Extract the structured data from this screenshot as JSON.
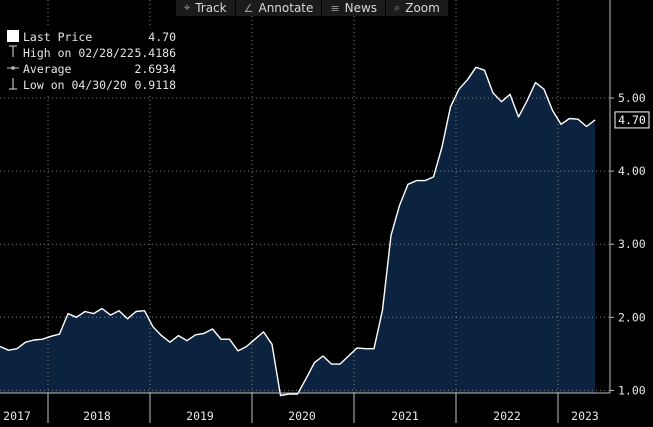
{
  "toolbar": {
    "items": [
      {
        "label": "Track",
        "icon": "crosshair-icon",
        "glyph": "⌖"
      },
      {
        "label": "Annotate",
        "icon": "pencil-icon",
        "glyph": "∠"
      },
      {
        "label": "News",
        "icon": "news-icon",
        "glyph": "≡"
      },
      {
        "label": "Zoom",
        "icon": "magnifier-icon",
        "glyph": "⌕"
      }
    ]
  },
  "legend": {
    "last_price": {
      "label": "Last Price",
      "value": "4.70"
    },
    "high": {
      "label": "High on 02/28/22",
      "value": "5.4186"
    },
    "average": {
      "label": "Average",
      "value": "2.6934"
    },
    "low": {
      "label": "Low on 04/30/20",
      "value": "0.9118"
    }
  },
  "colors": {
    "background": "#000000",
    "area_fill": "#0c2340",
    "line": "#ffffff",
    "grid": "#9a9a9a",
    "axis_text": "#e6e6e6"
  },
  "chart_data": {
    "type": "area",
    "x_start": "2017-01",
    "x_end": "2023-03",
    "x_labels": [
      "2017",
      "2018",
      "2019",
      "2020",
      "2021",
      "2022",
      "2023"
    ],
    "ylim": [
      0.5,
      5.5
    ],
    "y_ticks": [
      "1.00",
      "2.00",
      "3.00",
      "4.00",
      "5.00"
    ],
    "last_value_label": "4.70",
    "grid": true,
    "series": [
      {
        "values": [
          1.6,
          1.55,
          1.57,
          1.66,
          1.69,
          1.7,
          1.74,
          1.77,
          2.05,
          2.0,
          2.08,
          2.05,
          2.12,
          2.03,
          2.09,
          1.98,
          2.08,
          2.09,
          1.87,
          1.75,
          1.66,
          1.75,
          1.68,
          1.76,
          1.78,
          1.84,
          1.7,
          1.7,
          1.54,
          1.6,
          1.7,
          1.8,
          1.63,
          0.93,
          0.95,
          0.95,
          1.16,
          1.38,
          1.47,
          1.36,
          1.36,
          1.47,
          1.58,
          1.57,
          1.57,
          2.1,
          3.12,
          3.53,
          3.82,
          3.87,
          3.87,
          3.92,
          4.33,
          4.88,
          5.12,
          5.25,
          5.42,
          5.38,
          5.07,
          4.95,
          5.05,
          4.74,
          4.96,
          5.21,
          5.12,
          4.83,
          4.64,
          4.72,
          4.71,
          4.61,
          4.7
        ]
      }
    ]
  }
}
